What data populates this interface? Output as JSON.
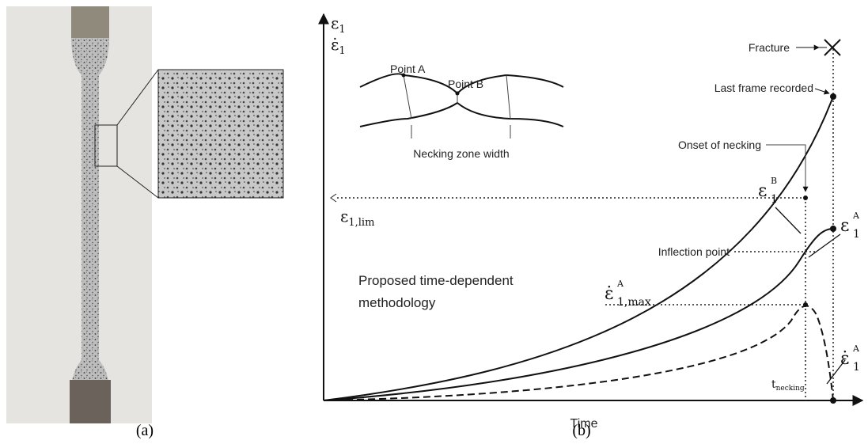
{
  "panel_a": {
    "caption": "(a)"
  },
  "panel_b": {
    "caption": "(b)",
    "y_axis_labels": [
      {
        "symbol": "ε",
        "sub": "1"
      },
      {
        "symbol": "ε̇",
        "sub": "1"
      }
    ],
    "x_axis_label": "Time",
    "inset": {
      "point_a": "Point A",
      "point_b": "Point B",
      "width_label": "Necking zone width"
    },
    "annotations": {
      "fracture": "Fracture",
      "last_frame": "Last frame recorded",
      "onset": "Onset of necking",
      "inflection": "Inflection point",
      "method": [
        "Proposed time-dependent",
        "methodology"
      ]
    },
    "symbols": {
      "eps_lim": {
        "symbol": "ε",
        "sub": "1,lim"
      },
      "eps_b": {
        "symbol": "ε",
        "sup": "B",
        "sub": "1"
      },
      "eps_a": {
        "symbol": "ε",
        "sup": "A",
        "sub": "1"
      },
      "rate_max": {
        "symbol": "ε̇",
        "sup": "A",
        "sub": "1,max"
      },
      "rate_a": {
        "symbol": "ε̇",
        "sup": "A",
        "sub": "1"
      },
      "t_necking": {
        "symbol": "t",
        "sub": "necking"
      }
    }
  }
}
